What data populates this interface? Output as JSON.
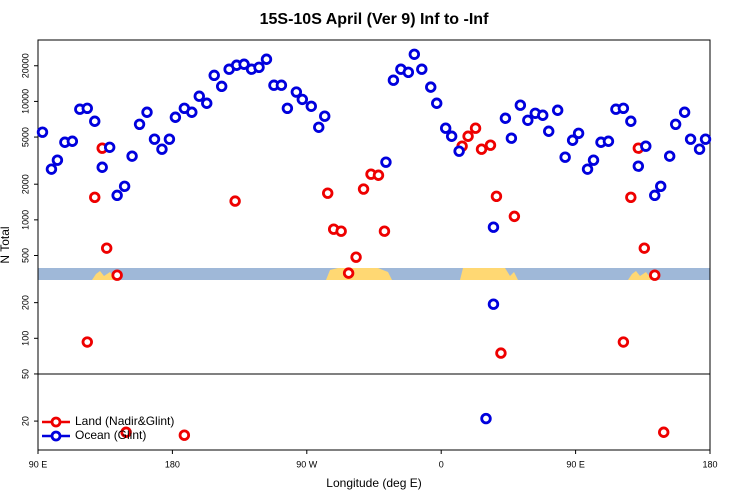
{
  "chart_data": {
    "type": "scatter",
    "title": "15S-10S April (Ver 9)   Inf to -Inf",
    "x_label": "Longitude (deg E)",
    "y_label": "N Total",
    "ylog": true,
    "xlim": [
      90,
      540
    ],
    "ylim": [
      11.4,
      33000
    ],
    "xticks": [
      {
        "value": 90,
        "label": "90 E"
      },
      {
        "value": 180,
        "label": "180"
      },
      {
        "value": 270,
        "label": "90 W"
      },
      {
        "value": 360,
        "label": "0"
      },
      {
        "value": 450,
        "label": "90 E"
      },
      {
        "value": 540,
        "label": "180"
      }
    ],
    "yticks": [
      20,
      50,
      100,
      200,
      500,
      1000,
      2000,
      5000,
      10000,
      20000
    ],
    "reference_line": 50,
    "legend": "bottom-left",
    "series": [
      {
        "name": "Land (Nadir&Glint)",
        "color": "#ee0000",
        "x": [
          123,
          128,
          133,
          136,
          143,
          149,
          188,
          222,
          284,
          288,
          293,
          298,
          303,
          308,
          313,
          318,
          322,
          374,
          378,
          383,
          387,
          393,
          397,
          400,
          409,
          482,
          487,
          492,
          496,
          503,
          509
        ],
        "values": [
          93,
          1550,
          4030,
          577,
          341,
          16.1,
          15.2,
          1440,
          1680,
          834,
          802,
          355,
          484,
          1820,
          2430,
          2380,
          802,
          4190,
          5080,
          5940,
          3950,
          4270,
          1580,
          75,
          1070,
          93,
          1550,
          4030,
          577,
          341,
          16.1
        ]
      },
      {
        "name": "Ocean (Glint)",
        "color": "#0000dd",
        "x": [
          93,
          99,
          103,
          108,
          113,
          118,
          123,
          128,
          133,
          138,
          143,
          148,
          153,
          158,
          163,
          168,
          173,
          178,
          182,
          188,
          193,
          198,
          203,
          208,
          213,
          218,
          223,
          228,
          233,
          238,
          243,
          248,
          253,
          257,
          263,
          267,
          273,
          278,
          282,
          323,
          328,
          333,
          338,
          342,
          347,
          353,
          357,
          363,
          367,
          372,
          390,
          395,
          395,
          403,
          407,
          413,
          418,
          423,
          428,
          432,
          438,
          443,
          448,
          452,
          458,
          462,
          467,
          472,
          477,
          482,
          487,
          492,
          497,
          503,
          507,
          513,
          517,
          523,
          527,
          533,
          537
        ],
        "values": [
          5500,
          2680,
          3190,
          4520,
          4610,
          8590,
          8750,
          6800,
          2780,
          4100,
          1610,
          1920,
          3450,
          6410,
          8100,
          4800,
          3950,
          4800,
          7350,
          8750,
          8100,
          11060,
          9650,
          16600,
          13400,
          18700,
          20200,
          20600,
          18700,
          19400,
          22700,
          13700,
          13700,
          8750,
          12000,
          10400,
          9100,
          6050,
          7500,
          3070,
          15100,
          18700,
          17600,
          25000,
          18700,
          13200,
          9650,
          5940,
          5080,
          3800,
          21,
          867,
          194,
          7210,
          4890,
          9290,
          6930,
          7940,
          7640,
          5600,
          8420,
          3380,
          4700,
          5380,
          2680,
          3190,
          4520,
          4610,
          8590,
          8750,
          6800,
          2840,
          4190,
          1610,
          1920,
          3450,
          6410,
          8100,
          4800,
          3950,
          4800
        ]
      }
    ]
  }
}
